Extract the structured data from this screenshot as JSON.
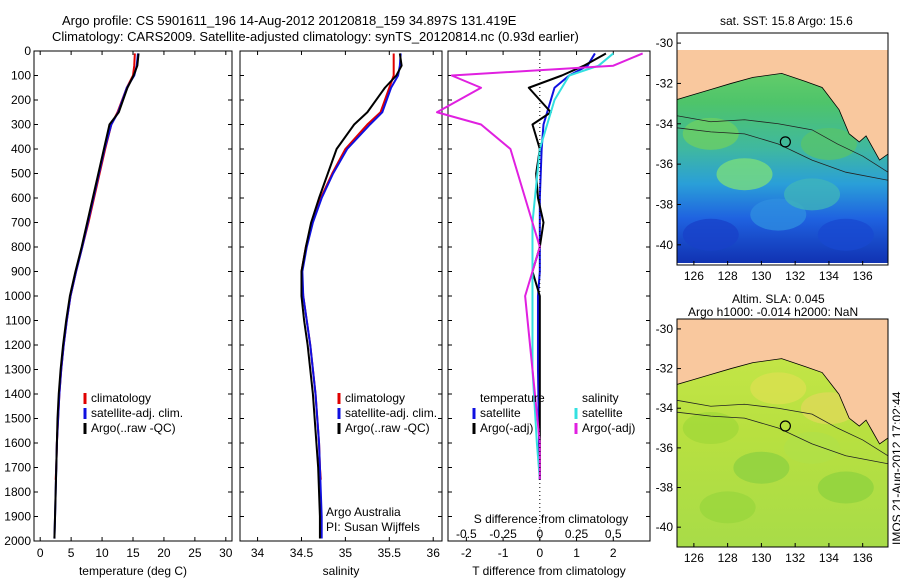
{
  "header": {
    "line1": "Argo profile: CS 5901611_196 14-Aug-2012 20120818_159 34.897S 131.419E",
    "line2": "Climatology: CARS2009. Satellite-adjusted climatology: synTS_20120814.nc (0.93d earlier)"
  },
  "side_stamp": "IMOS 21-Aug-2012 17:02:44",
  "colors": {
    "climatology": "#e00000",
    "satellite": "#1010e0",
    "argo": "#000000",
    "sat_salinity": "#33e0e0",
    "argo_salinity": "#e020e0",
    "land": "#f9c89e"
  },
  "chart_data": [
    {
      "type": "line",
      "name": "temperature-profile",
      "xlabel": "temperature (deg C)",
      "ylabel": "",
      "xlim": [
        -1,
        31
      ],
      "ylim": [
        2000,
        0
      ],
      "xticks": [
        "0",
        "5",
        "10",
        "15",
        "20",
        "25",
        "30"
      ],
      "yticks": [
        "0",
        "100",
        "200",
        "300",
        "400",
        "500",
        "600",
        "700",
        "800",
        "900",
        "1000",
        "1100",
        "1200",
        "1300",
        "1400",
        "1500",
        "1600",
        "1700",
        "1800",
        "1900",
        "2000"
      ],
      "legend": [
        "climatology",
        "satellite-adj. clim.",
        "Argo(..raw -QC)"
      ],
      "series": [
        {
          "name": "climatology",
          "color": "#e00000",
          "points": [
            [
              15.3,
              10
            ],
            [
              15.2,
              60
            ],
            [
              15.0,
              100
            ],
            [
              14.0,
              150
            ],
            [
              12.5,
              250
            ],
            [
              11.5,
              300
            ],
            [
              10.5,
              400
            ],
            [
              9.6,
              500
            ],
            [
              8.7,
              600
            ],
            [
              7.8,
              700
            ],
            [
              6.8,
              800
            ],
            [
              5.8,
              900
            ],
            [
              4.9,
              1000
            ],
            [
              4.3,
              1100
            ],
            [
              3.8,
              1200
            ],
            [
              3.4,
              1300
            ],
            [
              3.1,
              1400
            ],
            [
              2.9,
              1500
            ],
            [
              2.7,
              1600
            ],
            [
              2.6,
              1700
            ],
            [
              2.5,
              1750
            ]
          ]
        },
        {
          "name": "satellite-adj. clim.",
          "color": "#1010e0",
          "points": [
            [
              15.8,
              10
            ],
            [
              15.6,
              60
            ],
            [
              15.2,
              100
            ],
            [
              14.0,
              150
            ],
            [
              12.6,
              250
            ],
            [
              11.5,
              300
            ],
            [
              10.4,
              400
            ],
            [
              9.5,
              500
            ],
            [
              8.6,
              600
            ],
            [
              7.7,
              700
            ],
            [
              6.8,
              800
            ],
            [
              5.8,
              900
            ],
            [
              4.9,
              1000
            ],
            [
              4.3,
              1100
            ],
            [
              3.8,
              1200
            ],
            [
              3.4,
              1300
            ],
            [
              3.1,
              1400
            ],
            [
              2.9,
              1500
            ],
            [
              2.7,
              1600
            ],
            [
              2.6,
              1700
            ],
            [
              2.5,
              1800
            ],
            [
              2.4,
              1900
            ],
            [
              2.3,
              1990
            ]
          ]
        },
        {
          "name": "Argo(..raw -QC)",
          "color": "#000000",
          "points": [
            [
              15.9,
              10
            ],
            [
              15.7,
              60
            ],
            [
              15.1,
              100
            ],
            [
              14.1,
              150
            ],
            [
              12.7,
              250
            ],
            [
              11.2,
              300
            ],
            [
              10.3,
              400
            ],
            [
              9.4,
              500
            ],
            [
              8.5,
              600
            ],
            [
              7.6,
              700
            ],
            [
              6.7,
              800
            ],
            [
              5.7,
              900
            ],
            [
              4.8,
              1000
            ],
            [
              4.2,
              1100
            ],
            [
              3.7,
              1200
            ],
            [
              3.3,
              1300
            ],
            [
              3.0,
              1400
            ],
            [
              2.8,
              1500
            ],
            [
              2.7,
              1600
            ],
            [
              2.6,
              1700
            ],
            [
              2.5,
              1800
            ],
            [
              2.4,
              1900
            ],
            [
              2.3,
              1990
            ]
          ]
        }
      ]
    },
    {
      "type": "line",
      "name": "salinity-profile",
      "xlabel": "salinity",
      "ylabel": "",
      "xlim": [
        33.8,
        36.1
      ],
      "ylim": [
        2000,
        0
      ],
      "xticks": [
        "34",
        "34.5",
        "35",
        "35.5",
        "36"
      ],
      "legend": [
        "climatology",
        "satellite-adj. clim.",
        "Argo(..raw -QC)"
      ],
      "annotation": [
        "Argo Australia",
        "PI: Susan Wijffels"
      ],
      "series": [
        {
          "name": "climatology",
          "color": "#e00000",
          "points": [
            [
              35.55,
              10
            ],
            [
              35.55,
              60
            ],
            [
              35.55,
              100
            ],
            [
              35.5,
              150
            ],
            [
              35.4,
              250
            ],
            [
              35.25,
              300
            ],
            [
              35.0,
              400
            ],
            [
              34.85,
              500
            ],
            [
              34.72,
              600
            ],
            [
              34.62,
              700
            ],
            [
              34.55,
              800
            ],
            [
              34.5,
              900
            ],
            [
              34.52,
              1000
            ],
            [
              34.56,
              1100
            ],
            [
              34.6,
              1200
            ],
            [
              34.63,
              1300
            ],
            [
              34.66,
              1400
            ],
            [
              34.68,
              1500
            ],
            [
              34.7,
              1600
            ],
            [
              34.71,
              1700
            ],
            [
              34.72,
              1750
            ]
          ]
        },
        {
          "name": "satellite-adj. clim.",
          "color": "#1010e0",
          "points": [
            [
              35.63,
              10
            ],
            [
              35.62,
              60
            ],
            [
              35.6,
              100
            ],
            [
              35.52,
              150
            ],
            [
              35.42,
              250
            ],
            [
              35.28,
              300
            ],
            [
              35.02,
              400
            ],
            [
              34.86,
              500
            ],
            [
              34.73,
              600
            ],
            [
              34.63,
              700
            ],
            [
              34.56,
              800
            ],
            [
              34.51,
              900
            ],
            [
              34.52,
              1000
            ],
            [
              34.56,
              1100
            ],
            [
              34.6,
              1200
            ],
            [
              34.63,
              1300
            ],
            [
              34.66,
              1400
            ],
            [
              34.68,
              1500
            ],
            [
              34.7,
              1600
            ],
            [
              34.71,
              1700
            ],
            [
              34.72,
              1800
            ],
            [
              34.73,
              1900
            ],
            [
              34.73,
              1990
            ]
          ]
        },
        {
          "name": "Argo(..raw -QC)",
          "color": "#000000",
          "points": [
            [
              35.62,
              10
            ],
            [
              35.64,
              60
            ],
            [
              35.58,
              100
            ],
            [
              35.45,
              150
            ],
            [
              35.25,
              250
            ],
            [
              35.1,
              300
            ],
            [
              34.9,
              400
            ],
            [
              34.8,
              500
            ],
            [
              34.7,
              600
            ],
            [
              34.61,
              700
            ],
            [
              34.55,
              800
            ],
            [
              34.5,
              900
            ],
            [
              34.5,
              1000
            ],
            [
              34.53,
              1100
            ],
            [
              34.57,
              1200
            ],
            [
              34.6,
              1300
            ],
            [
              34.63,
              1400
            ],
            [
              34.65,
              1500
            ],
            [
              34.67,
              1600
            ],
            [
              34.69,
              1700
            ],
            [
              34.7,
              1800
            ],
            [
              34.71,
              1900
            ],
            [
              34.71,
              1990
            ]
          ]
        }
      ]
    },
    {
      "type": "line",
      "name": "difference-profile",
      "xlabel": "T difference from climatology",
      "top_axis_label": "S difference from climatology",
      "xlim": [
        -2.5,
        3.0
      ],
      "ylim": [
        2000,
        0
      ],
      "xticks": [
        "-2",
        "-1",
        "0",
        "1",
        "2"
      ],
      "top_ticks": [
        "-0.5",
        "-0.25",
        "0",
        "0.25",
        "0.5"
      ],
      "legend_temperature": {
        "title": "temperature",
        "items": [
          "satellite",
          "Argo(-adj)"
        ]
      },
      "legend_salinity": {
        "title": "salinity",
        "items": [
          "satellite",
          "Argo(-adj)"
        ]
      },
      "series": [
        {
          "name": "temperature satellite",
          "color": "#1010e0",
          "points": [
            [
              1.5,
              10
            ],
            [
              1.3,
              60
            ],
            [
              0.8,
              100
            ],
            [
              0.4,
              150
            ],
            [
              0.2,
              250
            ],
            [
              0.1,
              300
            ],
            [
              0.05,
              400
            ],
            [
              0.0,
              600
            ],
            [
              0.0,
              900
            ],
            [
              -0.05,
              1000
            ],
            [
              -0.05,
              1300
            ],
            [
              -0.02,
              1600
            ],
            [
              0.0,
              1750
            ]
          ]
        },
        {
          "name": "temperature Argo(-adj)",
          "color": "#000000",
          "points": [
            [
              1.8,
              10
            ],
            [
              1.2,
              60
            ],
            [
              0.6,
              100
            ],
            [
              -0.3,
              150
            ],
            [
              0.3,
              250
            ],
            [
              -0.2,
              300
            ],
            [
              0.0,
              400
            ],
            [
              -0.1,
              500
            ],
            [
              -0.05,
              600
            ],
            [
              0.1,
              700
            ],
            [
              0.0,
              800
            ],
            [
              -0.2,
              900
            ],
            [
              0.0,
              1000
            ],
            [
              0.0,
              1300
            ],
            [
              0.0,
              1600
            ],
            [
              0.0,
              1750
            ]
          ]
        },
        {
          "name": "salinity satellite",
          "color": "#33e0e0",
          "points": [
            [
              0.5,
              10
            ],
            [
              0.4,
              60
            ],
            [
              0.2,
              100
            ],
            [
              0.1,
              200
            ],
            [
              0.0,
              400
            ],
            [
              -0.05,
              700
            ],
            [
              -0.05,
              1000
            ],
            [
              -0.05,
              1300
            ],
            [
              -0.02,
              1600
            ],
            [
              0.0,
              1750
            ]
          ]
        },
        {
          "name": "salinity Argo(-adj)",
          "color": "#e020e0",
          "points": [
            [
              0.7,
              10
            ],
            [
              0.5,
              60
            ],
            [
              -0.6,
              100
            ],
            [
              -0.4,
              150
            ],
            [
              -0.7,
              250
            ],
            [
              -0.4,
              300
            ],
            [
              -0.2,
              400
            ],
            [
              -0.1,
              600
            ],
            [
              0.0,
              800
            ],
            [
              -0.1,
              1000
            ],
            [
              -0.05,
              1300
            ],
            [
              0.0,
              1600
            ],
            [
              0.0,
              1750
            ]
          ]
        }
      ]
    },
    {
      "type": "heatmap",
      "name": "sst-map",
      "title": "sat. SST: 15.8  Argo: 15.6",
      "xticks": [
        "126",
        "128",
        "130",
        "132",
        "134",
        "136"
      ],
      "yticks": [
        "-30",
        "-32",
        "-34",
        "-36",
        "-38",
        "-40"
      ],
      "xlim": [
        125,
        137.5
      ],
      "ylim": [
        -41,
        -29.5
      ],
      "argo_position": [
        131.419,
        -34.897
      ]
    },
    {
      "type": "heatmap",
      "name": "sla-map",
      "title": "Altim. SLA: 0.045",
      "subtitle": "Argo h1000: -0.014 h2000: NaN",
      "xticks": [
        "126",
        "128",
        "130",
        "132",
        "134",
        "136"
      ],
      "yticks": [
        "-30",
        "-32",
        "-34",
        "-36",
        "-38",
        "-40"
      ],
      "xlim": [
        125,
        137.5
      ],
      "ylim": [
        -41,
        -29.5
      ],
      "argo_position": [
        131.419,
        -34.897
      ]
    }
  ]
}
